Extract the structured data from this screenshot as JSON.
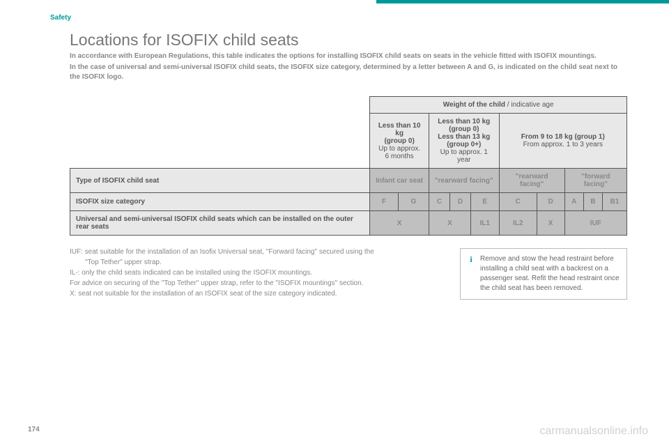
{
  "section": "Safety",
  "title": "Locations for ISOFIX child seats",
  "intro": {
    "p1": "In accordance with European Regulations, this table indicates the options for installing ISOFIX child seats on seats in the vehicle fitted with ISOFIX mountings.",
    "p2": "In the case of universal and semi-universal ISOFIX child seats, the ISOFIX size category, determined by a letter between A and G, is indicated on the child seat next to the ISOFIX logo."
  },
  "table": {
    "header_main": "Weight of the child",
    "header_main_sub": " / indicative age",
    "col1": {
      "b1": "Less than 10 kg",
      "b2": "(group 0)",
      "n1": "Up to approx.",
      "n2": "6 months"
    },
    "col2": {
      "b1": "Less than 10 kg",
      "b2": "(group 0)",
      "b3": "Less than 13 kg",
      "b4": "(group 0+)",
      "n1": "Up to approx. 1 year"
    },
    "col3": {
      "b1": "From 9 to 18 kg (group 1)",
      "n1": "From approx. 1 to 3 years"
    },
    "row1_label": "Type of ISOFIX child seat",
    "row1": {
      "c1": "Infant car seat",
      "c2": "\"rearward facing\"",
      "c3": "\"rearward facing\"",
      "c4": "\"forward facing\""
    },
    "row2_label": "ISOFIX size category",
    "row2": {
      "c1": "F",
      "c2": "G",
      "c3": "C",
      "c4": "D",
      "c5": "E",
      "c6": "C",
      "c7": "D",
      "c8": "A",
      "c9": "B",
      "c10": "B1"
    },
    "row3_label": "Universal and semi-universal ISOFIX child seats which can be installed on the outer rear seats",
    "row3": {
      "c1": "X",
      "c2": "X",
      "c3": "IL1",
      "c4": "IL2",
      "c5": "X",
      "c6": "IUF"
    }
  },
  "footnotes": {
    "l1": "IUF: seat suitable for the installation of an Isofix Universal seat, \"Forward facing\" secured using the",
    "l1b": "\"Top Tether\" upper strap.",
    "l2": "IL-: only the child seats indicated can be installed using the ISOFIX mountings.",
    "l3": "For advice on securing of the \"Top Tether\" upper strap, refer to the \"ISOFIX mountings\" section.",
    "l4": "X: seat not suitable for the installation of an ISOFIX seat of the size category indicated."
  },
  "infobox": "Remove and stow the head restraint before installing a child seat with a backrest on a passenger seat. Refit the head restraint once the child seat has been removed.",
  "page_num": "174",
  "watermark": "carmanualsonline.info"
}
